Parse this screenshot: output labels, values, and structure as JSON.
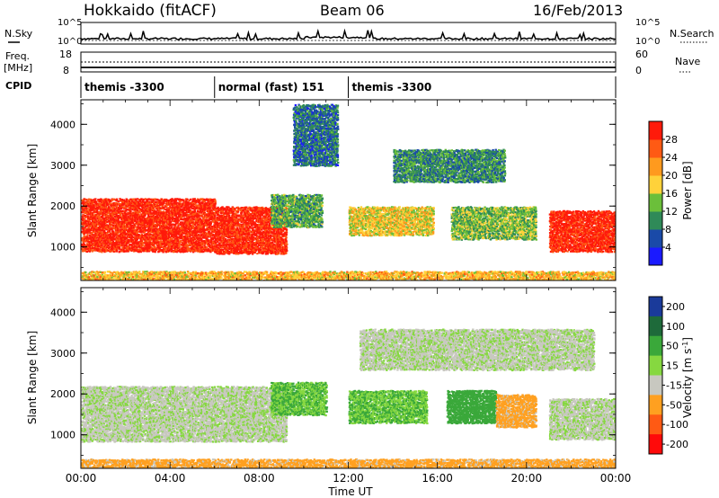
{
  "header": {
    "station": "Hokkaido (fitACF)",
    "beam": "Beam 06",
    "date": "16/Feb/2013"
  },
  "status_panels": {
    "nsky_label": "N.Sky",
    "nsearch_label": "N.Search",
    "freq_label": "Freq.",
    "freq_unit": "[MHz]",
    "nave_label": "Nave",
    "cpid_label": "CPID",
    "nsky_ticks": [
      "10^5",
      "10^0"
    ],
    "nsearch_ticks": [
      "10^5",
      "10^0"
    ],
    "freq_ticks": [
      "18",
      "8"
    ],
    "nave_ticks": [
      "60",
      "0"
    ]
  },
  "cpid": {
    "segments": [
      {
        "label": "themis -3300",
        "start_hour": 0,
        "end_hour": 6
      },
      {
        "label": "normal (fast) 151",
        "start_hour": 6,
        "end_hour": 12
      },
      {
        "label": "themis -3300",
        "start_hour": 12,
        "end_hour": 24
      }
    ]
  },
  "x_axis": {
    "label": "Time UT",
    "ticks": [
      "00:00",
      "04:00",
      "08:00",
      "12:00",
      "16:00",
      "20:00",
      "00:00"
    ]
  },
  "chart_data": [
    {
      "type": "heatmap",
      "panel": "power",
      "xlabel": "Time UT",
      "ylabel": "Slant Range [km]",
      "xlim": [
        0,
        24
      ],
      "ylim": [
        180,
        4600
      ],
      "yticks": [
        "1000",
        "2000",
        "3000",
        "4000"
      ],
      "colorbar": {
        "label": "Power [dB]",
        "tick_labels": [
          "4",
          "8",
          "12",
          "16",
          "20",
          "24",
          "28"
        ],
        "tick_values": [
          4,
          8,
          12,
          16,
          20,
          24,
          28
        ],
        "range": [
          0,
          32
        ],
        "colors": [
          "#1a1aff",
          "#1a4aa8",
          "#2f8a58",
          "#6bbf3a",
          "#ffd23a",
          "#ff9a1e",
          "#ff5a14",
          "#ff1a0a"
        ]
      },
      "scatter_regions": [
        {
          "t": [
            0.0,
            6.0
          ],
          "r": [
            900,
            2200
          ],
          "value": 30
        },
        {
          "t": [
            6.0,
            9.2
          ],
          "r": [
            850,
            2000
          ],
          "value": 30
        },
        {
          "t": [
            8.5,
            10.8
          ],
          "r": [
            1500,
            2300
          ],
          "value": 12
        },
        {
          "t": [
            12.0,
            15.8
          ],
          "r": [
            1300,
            2000
          ],
          "value": 18
        },
        {
          "t": [
            16.6,
            20.4
          ],
          "r": [
            1200,
            2000
          ],
          "value": 14
        },
        {
          "t": [
            21.0,
            24.0
          ],
          "r": [
            900,
            1900
          ],
          "value": 30
        },
        {
          "t": [
            14.0,
            19.0
          ],
          "r": [
            2600,
            3400
          ],
          "value": 10
        },
        {
          "t": [
            9.5,
            11.5
          ],
          "r": [
            3000,
            4500
          ],
          "value": 8
        },
        {
          "t": [
            0.0,
            24.0
          ],
          "r": [
            180,
            420
          ],
          "value": 20
        }
      ]
    },
    {
      "type": "heatmap",
      "panel": "velocity",
      "xlabel": "Time UT",
      "ylabel": "Slant Range [km]",
      "xlim": [
        0,
        24
      ],
      "ylim": [
        180,
        4600
      ],
      "yticks": [
        "1000",
        "2000",
        "3000",
        "4000"
      ],
      "colorbar": {
        "label": "Velocity [m s^-1]",
        "tick_labels": [
          "200",
          "100",
          "50",
          "15",
          "-15",
          "-50",
          "-100",
          "-200"
        ],
        "colors": [
          "#1a3a9a",
          "#1e6a3a",
          "#3aa83a",
          "#86d840",
          "#c8c8c0",
          "#ffa020",
          "#ff5a14",
          "#ff0a0a"
        ]
      },
      "scatter_regions": [
        {
          "t": [
            0.0,
            9.2
          ],
          "r": [
            850,
            2200
          ],
          "value": -5
        },
        {
          "t": [
            8.5,
            11.0
          ],
          "r": [
            1500,
            2300
          ],
          "value": 30
        },
        {
          "t": [
            12.0,
            15.5
          ],
          "r": [
            1300,
            2100
          ],
          "value": 30
        },
        {
          "t": [
            16.4,
            18.6
          ],
          "r": [
            1300,
            2100
          ],
          "value": 60
        },
        {
          "t": [
            18.6,
            20.4
          ],
          "r": [
            1200,
            2000
          ],
          "value": -40
        },
        {
          "t": [
            21.0,
            24.0
          ],
          "r": [
            900,
            1900
          ],
          "value": -5
        },
        {
          "t": [
            12.5,
            23.0
          ],
          "r": [
            2600,
            3600
          ],
          "value": -5
        },
        {
          "t": [
            0.0,
            24.0
          ],
          "r": [
            180,
            420
          ],
          "value": -40
        }
      ]
    }
  ]
}
